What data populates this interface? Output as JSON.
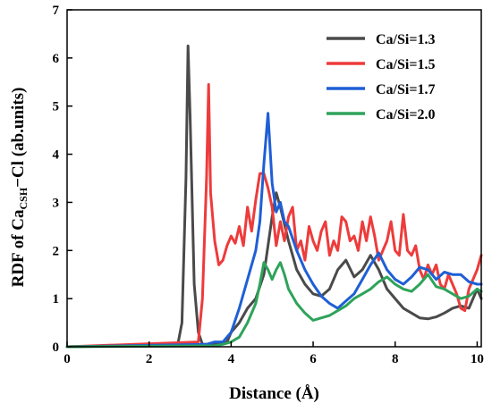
{
  "chart_data": {
    "type": "line",
    "xlabel": "Distance (Å)",
    "ylabel": {
      "prefix": "RDF of Ca",
      "subscript": "CSH",
      "suffix": "−Cl (ab.units)"
    },
    "xlim": [
      0,
      10.1
    ],
    "ylim": [
      0,
      7
    ],
    "xticks": [
      0,
      2,
      4,
      6,
      8,
      10
    ],
    "yticks": [
      0,
      1,
      2,
      3,
      4,
      5,
      6,
      7
    ],
    "grid": false,
    "legend_position": "top-right",
    "series": [
      {
        "name": "Ca/Si=1.3",
        "color": "#4a4a4a",
        "x": [
          0,
          2.7,
          2.8,
          2.9,
          2.95,
          3.0,
          3.1,
          3.2,
          3.3,
          3.5,
          3.7,
          3.9,
          4.0,
          4.2,
          4.4,
          4.6,
          4.8,
          5.0,
          5.1,
          5.2,
          5.4,
          5.6,
          5.8,
          6.0,
          6.2,
          6.4,
          6.6,
          6.8,
          7.0,
          7.2,
          7.4,
          7.6,
          7.8,
          8.0,
          8.2,
          8.4,
          8.6,
          8.8,
          9.0,
          9.2,
          9.4,
          9.6,
          9.8,
          10.0,
          10.1
        ],
        "y": [
          0,
          0.05,
          0.5,
          3.5,
          6.25,
          4.8,
          1.3,
          0.3,
          0.05,
          0.05,
          0.05,
          0.1,
          0.3,
          0.5,
          0.8,
          1.0,
          1.5,
          2.7,
          3.2,
          2.9,
          2.2,
          1.6,
          1.3,
          1.1,
          1.05,
          1.2,
          1.6,
          1.8,
          1.45,
          1.6,
          1.9,
          1.6,
          1.2,
          1.0,
          0.8,
          0.7,
          0.6,
          0.58,
          0.62,
          0.7,
          0.8,
          0.85,
          0.8,
          1.2,
          1.0
        ]
      },
      {
        "name": "Ca/Si=1.5",
        "color": "#ee3b3b",
        "x": [
          0,
          3.2,
          3.3,
          3.4,
          3.45,
          3.5,
          3.6,
          3.7,
          3.8,
          3.9,
          4.0,
          4.1,
          4.2,
          4.3,
          4.4,
          4.5,
          4.6,
          4.7,
          4.8,
          4.9,
          5.0,
          5.1,
          5.2,
          5.3,
          5.4,
          5.5,
          5.6,
          5.7,
          5.8,
          5.9,
          6.0,
          6.1,
          6.2,
          6.3,
          6.4,
          6.5,
          6.6,
          6.7,
          6.8,
          6.9,
          7.0,
          7.1,
          7.2,
          7.3,
          7.4,
          7.5,
          7.6,
          7.7,
          7.8,
          7.9,
          8.0,
          8.1,
          8.2,
          8.3,
          8.4,
          8.5,
          8.6,
          8.7,
          8.8,
          8.9,
          9.0,
          9.1,
          9.2,
          9.3,
          9.4,
          9.5,
          9.6,
          9.7,
          9.8,
          9.9,
          10.0,
          10.1
        ],
        "y": [
          0,
          0.1,
          1.0,
          3.5,
          5.45,
          3.2,
          2.2,
          1.7,
          1.8,
          2.1,
          2.3,
          2.15,
          2.5,
          2.1,
          2.9,
          2.4,
          3.05,
          3.6,
          3.6,
          3.3,
          2.9,
          2.1,
          2.6,
          2.2,
          2.7,
          2.9,
          2.0,
          2.2,
          1.8,
          2.5,
          2.2,
          2.0,
          2.4,
          2.6,
          1.9,
          2.2,
          2.0,
          2.7,
          2.6,
          2.2,
          2.3,
          2.0,
          2.6,
          2.2,
          2.7,
          2.3,
          1.8,
          2.0,
          2.2,
          2.6,
          2.0,
          1.9,
          2.75,
          2.0,
          1.9,
          2.1,
          1.6,
          1.4,
          1.7,
          1.5,
          1.7,
          1.3,
          1.2,
          1.5,
          1.3,
          1.1,
          0.8,
          0.75,
          1.2,
          1.4,
          1.6,
          1.9
        ]
      },
      {
        "name": "Ca/Si=1.7",
        "color": "#1f5fd6",
        "x": [
          0,
          3.4,
          3.6,
          3.8,
          4.0,
          4.2,
          4.4,
          4.6,
          4.7,
          4.8,
          4.9,
          5.0,
          5.1,
          5.2,
          5.3,
          5.4,
          5.6,
          5.8,
          6.0,
          6.2,
          6.4,
          6.6,
          6.8,
          7.0,
          7.2,
          7.4,
          7.6,
          7.8,
          8.0,
          8.2,
          8.4,
          8.6,
          8.8,
          9.0,
          9.2,
          9.4,
          9.6,
          9.8,
          10.0,
          10.1
        ],
        "y": [
          0,
          0.05,
          0.1,
          0.1,
          0.3,
          0.8,
          1.4,
          2.0,
          2.6,
          3.8,
          4.85,
          3.4,
          2.8,
          3.0,
          2.6,
          2.5,
          2.0,
          1.6,
          1.3,
          1.05,
          0.9,
          0.8,
          0.95,
          1.1,
          1.4,
          1.7,
          1.95,
          1.6,
          1.4,
          1.3,
          1.45,
          1.65,
          1.6,
          1.4,
          1.55,
          1.5,
          1.5,
          1.35,
          1.3,
          1.3
        ]
      },
      {
        "name": "Ca/Si=2.0",
        "color": "#2ea35a",
        "x": [
          0,
          3.6,
          3.8,
          4.0,
          4.2,
          4.4,
          4.6,
          4.7,
          4.8,
          4.9,
          5.0,
          5.1,
          5.2,
          5.3,
          5.4,
          5.6,
          5.8,
          6.0,
          6.2,
          6.4,
          6.6,
          6.8,
          7.0,
          7.2,
          7.4,
          7.6,
          7.8,
          8.0,
          8.2,
          8.4,
          8.6,
          8.8,
          9.0,
          9.2,
          9.4,
          9.6,
          9.8,
          10.0,
          10.1
        ],
        "y": [
          0,
          0.02,
          0.05,
          0.1,
          0.2,
          0.5,
          0.9,
          1.3,
          1.75,
          1.6,
          1.4,
          1.6,
          1.75,
          1.5,
          1.2,
          0.9,
          0.7,
          0.55,
          0.6,
          0.65,
          0.75,
          0.85,
          1.0,
          1.1,
          1.2,
          1.35,
          1.45,
          1.3,
          1.2,
          1.15,
          1.3,
          1.5,
          1.25,
          1.2,
          1.1,
          1.0,
          1.05,
          1.2,
          1.15
        ]
      }
    ]
  }
}
